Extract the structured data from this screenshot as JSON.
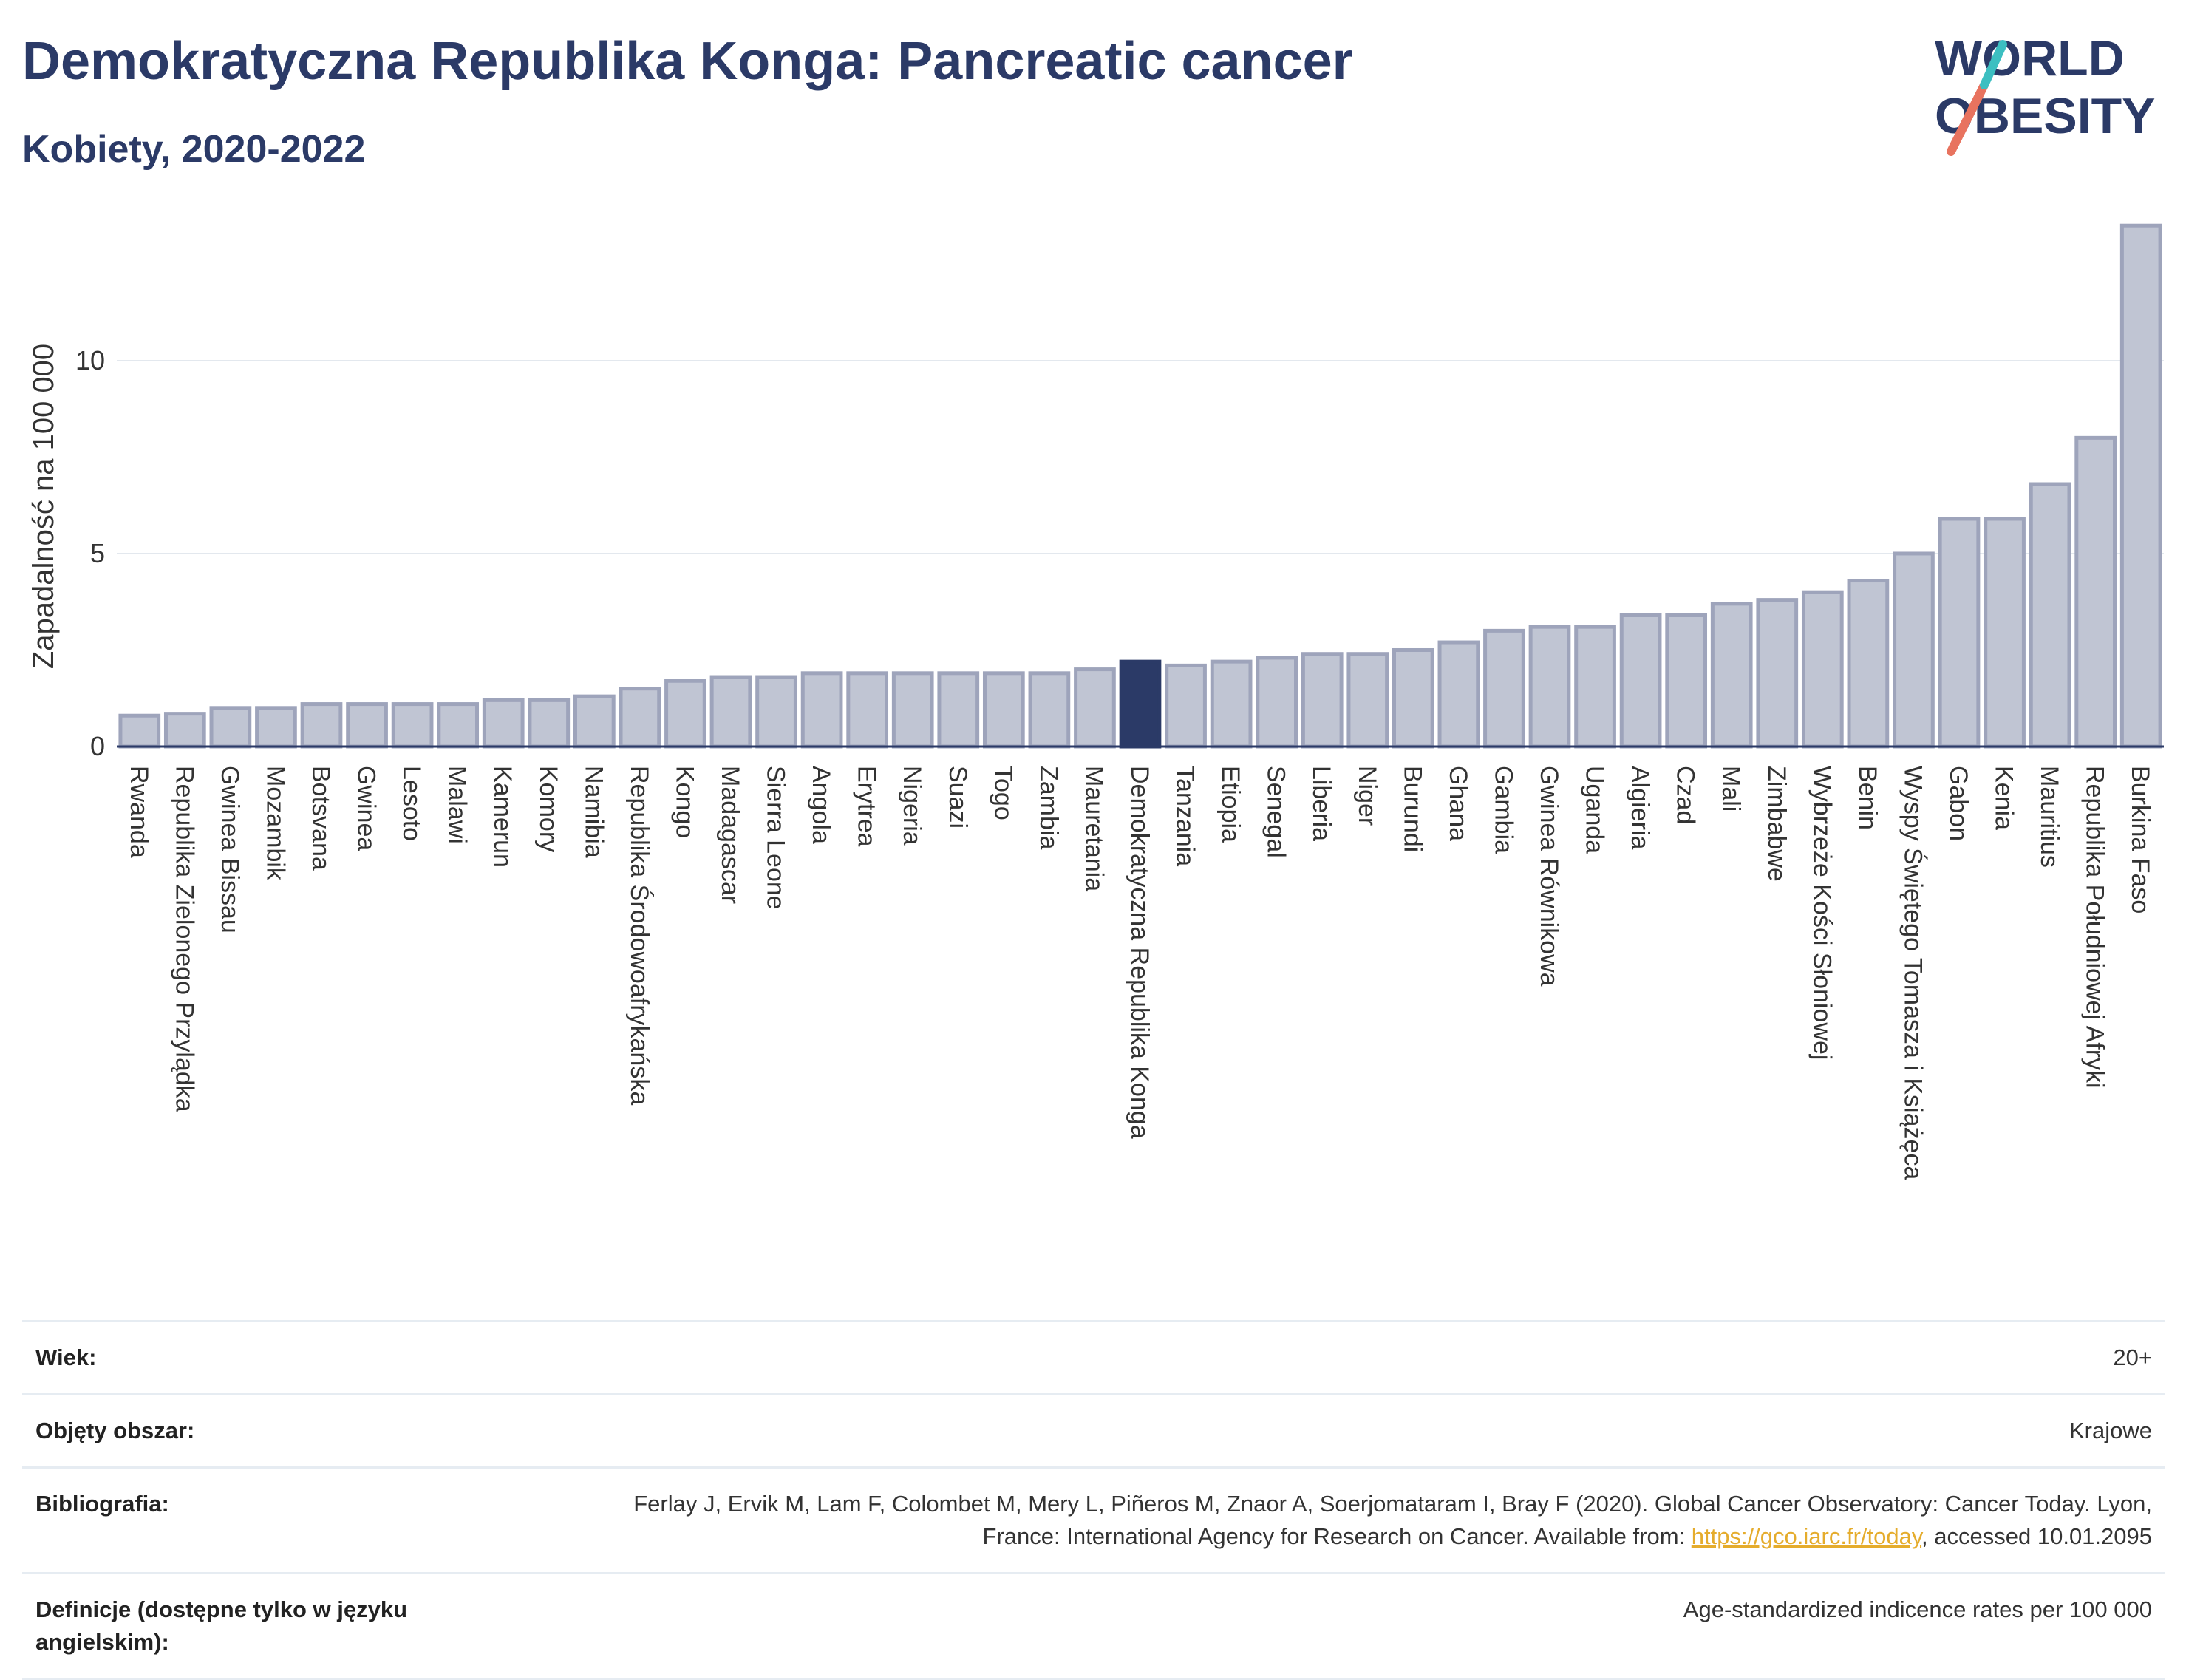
{
  "header": {
    "title": "Demokratyczna Republika Konga: Pancreatic cancer",
    "subtitle": "Kobiety, 2020-2022"
  },
  "logo": {
    "line1": "WORLD",
    "line2": "OBESITY",
    "accent_colors": [
      "#e8735f",
      "#3cbfc1"
    ]
  },
  "chart_data": {
    "type": "bar",
    "ylabel": "Zapadalność na 100 000",
    "xlabel": "",
    "ylim": [
      0,
      13.6
    ],
    "yticks": [
      0,
      5,
      10
    ],
    "grid": true,
    "highlight": "Demokratyczna Republika Konga",
    "colors": {
      "bar": "#c0c5d3",
      "bar_border": "#9ea4bb",
      "highlight": "#2b3a67"
    },
    "categories": [
      "Rwanda",
      "Republika Zielonego Przylądka",
      "Gwinea Bissau",
      "Mozambik",
      "Botsvana",
      "Gwinea",
      "Lesoto",
      "Malawi",
      "Kamerun",
      "Komory",
      "Namibia",
      "Republika Środowoafrykańska",
      "Kongo",
      "Madagascar",
      "Sierra Leone",
      "Angola",
      "Erytrea",
      "Nigeria",
      "Suazi",
      "Togo",
      "Zambia",
      "Mauretania",
      "Demokratyczna Republika Konga",
      "Tanzania",
      "Etiopia",
      "Senegal",
      "Liberia",
      "Niger",
      "Burundi",
      "Ghana",
      "Gambia",
      "Gwinea Równikowa",
      "Uganda",
      "Algieria",
      "Czad",
      "Mali",
      "Zimbabwe",
      "Wybrzeże Kości Słoniowej",
      "Benin",
      "Wyspy Świętego Tomasza i Książęca",
      "Gabon",
      "Kenia",
      "Mauritius",
      "Republika Południowej Afryki",
      "Burkina Faso"
    ],
    "values": [
      0.8,
      0.85,
      1.0,
      1.0,
      1.1,
      1.1,
      1.1,
      1.1,
      1.2,
      1.2,
      1.3,
      1.5,
      1.7,
      1.8,
      1.8,
      1.9,
      1.9,
      1.9,
      1.9,
      1.9,
      1.9,
      2.0,
      2.2,
      2.1,
      2.2,
      2.3,
      2.4,
      2.4,
      2.5,
      2.7,
      3.0,
      3.1,
      3.1,
      3.4,
      3.4,
      3.7,
      3.8,
      4.0,
      4.3,
      5.0,
      5.9,
      5.9,
      6.8,
      8.0,
      13.5
    ]
  },
  "info": {
    "age_label": "Wiek:",
    "age_value": "20+",
    "coverage_label": "Objęty obszar:",
    "coverage_value": "Krajowe",
    "bibliography_label": "Bibliografia:",
    "bibliography_text_1": "Ferlay J, Ervik M, Lam F, Colombet M, Mery L, Piñeros M, Znaor A, Soerjomataram I, Bray F (2020). Global Cancer Observatory: Cancer Today. Lyon, France: International Agency for Research on Cancer. Available from: ",
    "bibliography_link": "https://gco.iarc.fr/today",
    "bibliography_text_2": ", accessed 10.01.2095",
    "definitions_label": "Definicje (dostępne tylko w języku angielskim):",
    "definitions_value": "Age-standardized indicence rates per 100 000"
  }
}
